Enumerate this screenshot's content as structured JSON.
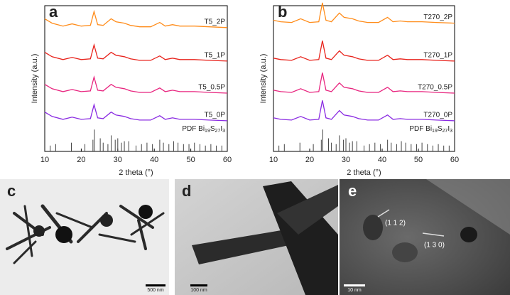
{
  "chart_data": [
    {
      "type": "line",
      "label": "a",
      "x_label": "2 theta (°)",
      "y_label": "Intensity (a.u.)",
      "xlim": [
        10,
        60
      ],
      "xticks": [
        10,
        20,
        30,
        40,
        50,
        60
      ],
      "ylim": [
        0,
        100
      ],
      "x": [
        10,
        12,
        15,
        17.5,
        20,
        22.5,
        23.5,
        24.5,
        26,
        28.2,
        29.5,
        31.8,
        33.5,
        36,
        39,
        41.5,
        43,
        45,
        47,
        51,
        55,
        60
      ],
      "series": [
        {
          "name": "T5_2P",
          "color": "#ff8c1a",
          "values": [
            91,
            88,
            86,
            87.5,
            86,
            86.5,
            96,
            87,
            86.5,
            91,
            89,
            88,
            86.5,
            85.5,
            85.5,
            88.5,
            86,
            87,
            86,
            86,
            85.5,
            85
          ]
        },
        {
          "name": "T5_1P",
          "color": "#e8231c",
          "values": [
            68,
            65,
            63,
            64.5,
            63,
            63.5,
            73,
            64,
            63.5,
            68,
            66,
            65,
            63.5,
            62.5,
            62.5,
            65.5,
            63,
            64,
            63,
            63,
            62.5,
            62
          ]
        },
        {
          "name": "T5_0.5P",
          "color": "#e8257f",
          "values": [
            46,
            43,
            41,
            42.5,
            41,
            41.5,
            51,
            42,
            41.5,
            46,
            44,
            43,
            41.5,
            40.5,
            40.5,
            43.5,
            41,
            42,
            41,
            41,
            40.5,
            40
          ]
        },
        {
          "name": "T5_0P",
          "color": "#8a2be2",
          "values": [
            27,
            24,
            22,
            23.5,
            22,
            22.5,
            32,
            23,
            22.5,
            27,
            25,
            24,
            22.5,
            21.5,
            21.5,
            24.5,
            22,
            23,
            22,
            22,
            21.5,
            21
          ]
        }
      ],
      "reference": {
        "label": [
          "PDF Bi",
          "19",
          "S",
          "27",
          "I",
          "3"
        ],
        "color": "#444",
        "x": [
          11.5,
          13,
          17.3,
          21,
          23.2,
          23.6,
          25.2,
          26,
          27.3,
          28.2,
          29.3,
          30,
          31,
          31.8,
          33,
          35,
          36.5,
          38,
          39.5,
          41.5,
          42.5,
          44,
          45.3,
          46.5,
          48,
          49.5,
          51,
          52.5,
          54,
          55.5,
          57,
          58.5
        ],
        "values": [
          4,
          5,
          6,
          5,
          8,
          15,
          9,
          6,
          5,
          11,
          8,
          9,
          6,
          7,
          7,
          4,
          5,
          6,
          5,
          8,
          6,
          5,
          7,
          6,
          5,
          5,
          6,
          5,
          4,
          5,
          4,
          4
        ]
      }
    },
    {
      "type": "line",
      "label": "b",
      "x_label": "2 theta (°)",
      "y_label": "Intensity (a.u.)",
      "xlim": [
        10,
        60
      ],
      "xticks": [
        10,
        20,
        30,
        40,
        50,
        60
      ],
      "ylim": [
        0,
        100
      ],
      "x": [
        10,
        12,
        15,
        17.5,
        20,
        22.5,
        23.5,
        24.5,
        26,
        28.2,
        29.5,
        31.8,
        33.5,
        36,
        39,
        41.5,
        43,
        45,
        47,
        51,
        55,
        60
      ],
      "series": [
        {
          "name": "T270_2P",
          "color": "#ff8c1a",
          "values": [
            90,
            89,
            88.5,
            91,
            88.5,
            89,
            102,
            90,
            89,
            95,
            92,
            91,
            89.5,
            88.5,
            88.5,
            92,
            89,
            89.5,
            89,
            89,
            88.5,
            88
          ]
        },
        {
          "name": "T270_1P",
          "color": "#e8231c",
          "values": [
            64,
            63,
            62.5,
            65,
            62.5,
            63,
            76,
            64,
            63,
            69,
            66,
            65,
            63.5,
            62.5,
            62.5,
            66,
            63,
            63.5,
            63,
            63,
            62.5,
            62
          ]
        },
        {
          "name": "T270_0.5P",
          "color": "#e8257f",
          "values": [
            42,
            41,
            40.5,
            43,
            40.5,
            41,
            54,
            42,
            41,
            47,
            44,
            43,
            41.5,
            40.5,
            40.5,
            44,
            41,
            41.5,
            41,
            41,
            40.5,
            40
          ]
        },
        {
          "name": "T270_0P",
          "color": "#8a2be2",
          "values": [
            23,
            22,
            21.5,
            24,
            21.5,
            22,
            35,
            23,
            22,
            28,
            25,
            24,
            22.5,
            21.5,
            21.5,
            25,
            22,
            22.5,
            22,
            22,
            21.5,
            21
          ]
        }
      ],
      "reference": {
        "label": [
          "PDF Bi",
          "19",
          "S",
          "27",
          "I",
          "3"
        ],
        "color": "#444",
        "x": [
          11.5,
          13,
          17.3,
          21,
          23.2,
          23.6,
          25.2,
          26,
          27.3,
          28.2,
          29.3,
          30,
          31,
          31.8,
          33,
          35,
          36.5,
          38,
          39.5,
          41.5,
          42.5,
          44,
          45.3,
          46.5,
          48,
          49.5,
          51,
          52.5,
          54,
          55.5,
          57,
          58.5
        ],
        "values": [
          4,
          5,
          6,
          5,
          8,
          15,
          9,
          6,
          5,
          11,
          8,
          9,
          6,
          7,
          7,
          4,
          5,
          6,
          5,
          8,
          6,
          5,
          7,
          6,
          5,
          5,
          6,
          5,
          4,
          5,
          4,
          4
        ]
      }
    }
  ],
  "images": [
    {
      "label": "c",
      "scale_bar": "500 nm"
    },
    {
      "label": "d",
      "scale_bar": "100 nm"
    },
    {
      "label": "e",
      "scale_bar": "10 nm",
      "annotations": [
        "(1 1 2)",
        "(1 3 0)"
      ]
    }
  ]
}
